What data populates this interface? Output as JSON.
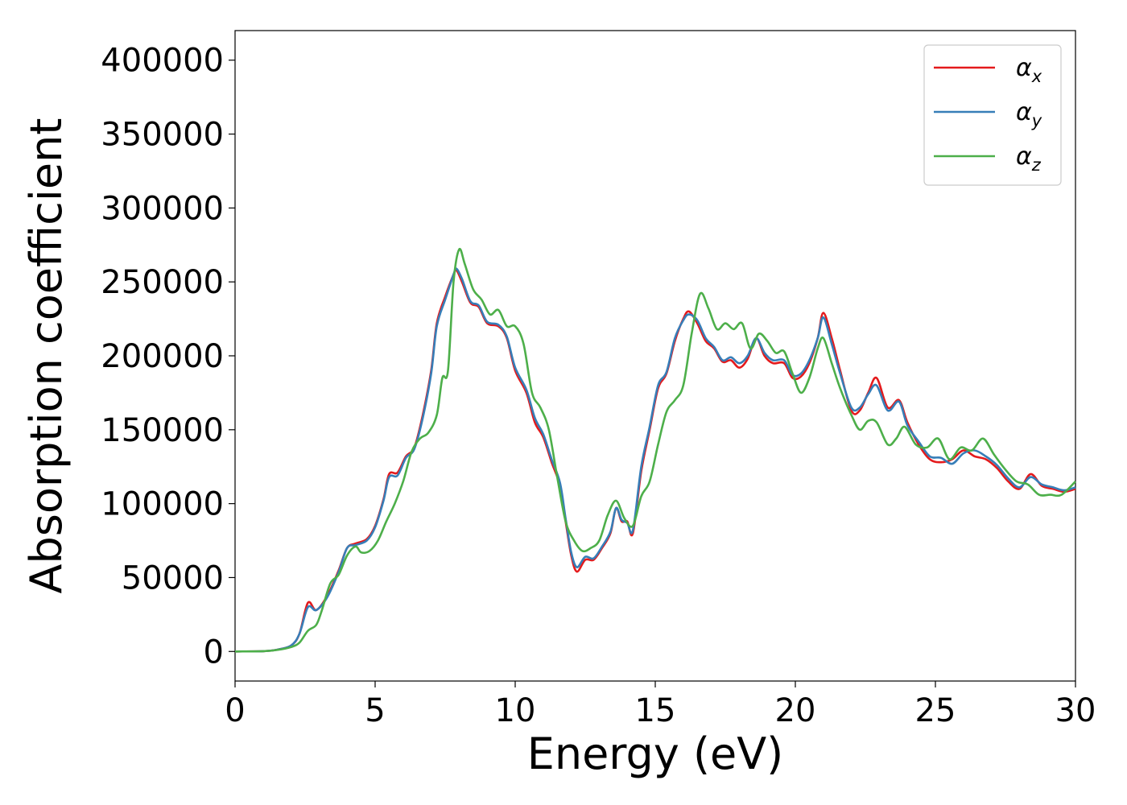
{
  "chart_data": {
    "type": "line",
    "xlabel": "Energy (eV)",
    "ylabel": "Absorption coefficient",
    "xlim": [
      0,
      30
    ],
    "ylim": [
      -20000,
      420000
    ],
    "xticks": [
      0,
      5,
      10,
      15,
      20,
      25,
      30
    ],
    "yticks": [
      0,
      50000,
      100000,
      150000,
      200000,
      250000,
      300000,
      350000,
      400000
    ],
    "grid": false,
    "legend_position": "top-right",
    "series": [
      {
        "name": "αx",
        "symbol": "α",
        "subscript": "x",
        "color": "#e41a1c",
        "points": [
          [
            0,
            0
          ],
          [
            1,
            200
          ],
          [
            1.5,
            1200
          ],
          [
            2,
            4000
          ],
          [
            2.3,
            12000
          ],
          [
            2.6,
            33000
          ],
          [
            2.9,
            28000
          ],
          [
            3.3,
            38000
          ],
          [
            3.7,
            55000
          ],
          [
            4,
            70000
          ],
          [
            4.3,
            73000
          ],
          [
            4.7,
            76000
          ],
          [
            5,
            85000
          ],
          [
            5.3,
            103000
          ],
          [
            5.5,
            120000
          ],
          [
            5.8,
            121000
          ],
          [
            6.1,
            132000
          ],
          [
            6.4,
            138000
          ],
          [
            6.7,
            160000
          ],
          [
            7,
            190000
          ],
          [
            7.2,
            222000
          ],
          [
            7.5,
            240000
          ],
          [
            7.8,
            255000
          ],
          [
            7.9,
            258000
          ],
          [
            8.1,
            250000
          ],
          [
            8.4,
            236000
          ],
          [
            8.7,
            233000
          ],
          [
            9,
            222000
          ],
          [
            9.4,
            220000
          ],
          [
            9.7,
            212000
          ],
          [
            10,
            190000
          ],
          [
            10.4,
            175000
          ],
          [
            10.7,
            155000
          ],
          [
            11,
            145000
          ],
          [
            11.3,
            128000
          ],
          [
            11.6,
            112000
          ],
          [
            11.8,
            88000
          ],
          [
            12,
            65000
          ],
          [
            12.2,
            54000
          ],
          [
            12.5,
            62000
          ],
          [
            12.8,
            62000
          ],
          [
            13.1,
            70000
          ],
          [
            13.4,
            80000
          ],
          [
            13.6,
            97000
          ],
          [
            13.8,
            88000
          ],
          [
            14,
            88000
          ],
          [
            14.2,
            80000
          ],
          [
            14.5,
            122000
          ],
          [
            14.8,
            150000
          ],
          [
            15.1,
            178000
          ],
          [
            15.4,
            188000
          ],
          [
            15.7,
            210000
          ],
          [
            16,
            225000
          ],
          [
            16.2,
            230000
          ],
          [
            16.5,
            222000
          ],
          [
            16.8,
            210000
          ],
          [
            17.1,
            205000
          ],
          [
            17.4,
            196000
          ],
          [
            17.7,
            197000
          ],
          [
            18,
            192000
          ],
          [
            18.3,
            198000
          ],
          [
            18.6,
            212000
          ],
          [
            18.9,
            200000
          ],
          [
            19.2,
            195000
          ],
          [
            19.6,
            195000
          ],
          [
            19.9,
            185000
          ],
          [
            20.2,
            186000
          ],
          [
            20.5,
            195000
          ],
          [
            20.8,
            212000
          ],
          [
            21,
            229000
          ],
          [
            21.3,
            212000
          ],
          [
            21.6,
            190000
          ],
          [
            22,
            163000
          ],
          [
            22.3,
            163000
          ],
          [
            22.6,
            175000
          ],
          [
            22.9,
            185000
          ],
          [
            23.3,
            165000
          ],
          [
            23.7,
            170000
          ],
          [
            24,
            155000
          ],
          [
            24.4,
            140000
          ],
          [
            24.8,
            130000
          ],
          [
            25.2,
            128000
          ],
          [
            25.6,
            130000
          ],
          [
            26,
            136000
          ],
          [
            26.4,
            132000
          ],
          [
            26.8,
            130000
          ],
          [
            27.2,
            124000
          ],
          [
            27.6,
            115000
          ],
          [
            28,
            110000
          ],
          [
            28.4,
            120000
          ],
          [
            28.8,
            112000
          ],
          [
            29.2,
            110000
          ],
          [
            29.6,
            108000
          ],
          [
            30,
            110000
          ]
        ]
      },
      {
        "name": "αy",
        "symbol": "α",
        "subscript": "y",
        "color": "#377eb8",
        "points": [
          [
            0,
            0
          ],
          [
            1,
            200
          ],
          [
            1.5,
            1200
          ],
          [
            2,
            4000
          ],
          [
            2.3,
            12000
          ],
          [
            2.6,
            30000
          ],
          [
            2.9,
            28000
          ],
          [
            3.3,
            37000
          ],
          [
            3.7,
            54000
          ],
          [
            4,
            70000
          ],
          [
            4.3,
            72000
          ],
          [
            4.7,
            75000
          ],
          [
            5,
            84000
          ],
          [
            5.3,
            102000
          ],
          [
            5.5,
            118000
          ],
          [
            5.8,
            119000
          ],
          [
            6.1,
            131000
          ],
          [
            6.4,
            137000
          ],
          [
            6.7,
            158000
          ],
          [
            7,
            188000
          ],
          [
            7.2,
            220000
          ],
          [
            7.5,
            238000
          ],
          [
            7.8,
            255000
          ],
          [
            7.9,
            259000
          ],
          [
            8.1,
            252000
          ],
          [
            8.4,
            237000
          ],
          [
            8.7,
            234000
          ],
          [
            9,
            223000
          ],
          [
            9.4,
            221000
          ],
          [
            9.7,
            213000
          ],
          [
            10,
            192000
          ],
          [
            10.4,
            177000
          ],
          [
            10.7,
            158000
          ],
          [
            11,
            147000
          ],
          [
            11.3,
            130000
          ],
          [
            11.6,
            114000
          ],
          [
            11.8,
            90000
          ],
          [
            12,
            67000
          ],
          [
            12.2,
            57000
          ],
          [
            12.5,
            64000
          ],
          [
            12.8,
            63000
          ],
          [
            13.1,
            71000
          ],
          [
            13.4,
            81000
          ],
          [
            13.6,
            97000
          ],
          [
            13.8,
            89000
          ],
          [
            14,
            87000
          ],
          [
            14.2,
            82000
          ],
          [
            14.5,
            125000
          ],
          [
            14.8,
            152000
          ],
          [
            15.1,
            180000
          ],
          [
            15.4,
            189000
          ],
          [
            15.7,
            212000
          ],
          [
            16,
            224000
          ],
          [
            16.2,
            228000
          ],
          [
            16.5,
            224000
          ],
          [
            16.8,
            212000
          ],
          [
            17.1,
            206000
          ],
          [
            17.4,
            197000
          ],
          [
            17.7,
            199000
          ],
          [
            18,
            195000
          ],
          [
            18.3,
            200000
          ],
          [
            18.6,
            212000
          ],
          [
            18.9,
            202000
          ],
          [
            19.2,
            197000
          ],
          [
            19.6,
            197000
          ],
          [
            19.9,
            187000
          ],
          [
            20.2,
            188000
          ],
          [
            20.5,
            197000
          ],
          [
            20.8,
            212000
          ],
          [
            21,
            226000
          ],
          [
            21.3,
            208000
          ],
          [
            21.6,
            188000
          ],
          [
            22,
            165000
          ],
          [
            22.3,
            165000
          ],
          [
            22.6,
            174000
          ],
          [
            22.9,
            180000
          ],
          [
            23.3,
            163000
          ],
          [
            23.7,
            169000
          ],
          [
            24,
            153000
          ],
          [
            24.4,
            142000
          ],
          [
            24.8,
            132000
          ],
          [
            25.2,
            131000
          ],
          [
            25.6,
            127000
          ],
          [
            26,
            134000
          ],
          [
            26.4,
            136000
          ],
          [
            26.8,
            132000
          ],
          [
            27.2,
            126000
          ],
          [
            27.6,
            117000
          ],
          [
            28,
            111000
          ],
          [
            28.4,
            118000
          ],
          [
            28.8,
            113000
          ],
          [
            29.2,
            111000
          ],
          [
            29.6,
            109000
          ],
          [
            30,
            111000
          ]
        ]
      },
      {
        "name": "αz",
        "symbol": "α",
        "subscript": "z",
        "color": "#4daf4a",
        "points": [
          [
            0,
            0
          ],
          [
            1,
            200
          ],
          [
            1.5,
            1000
          ],
          [
            2,
            3000
          ],
          [
            2.3,
            6000
          ],
          [
            2.6,
            14000
          ],
          [
            2.9,
            18000
          ],
          [
            3.1,
            28000
          ],
          [
            3.4,
            46000
          ],
          [
            3.7,
            52000
          ],
          [
            4,
            65000
          ],
          [
            4.3,
            71000
          ],
          [
            4.5,
            67000
          ],
          [
            4.8,
            68000
          ],
          [
            5.1,
            75000
          ],
          [
            5.4,
            88000
          ],
          [
            5.7,
            100000
          ],
          [
            6,
            115000
          ],
          [
            6.3,
            135000
          ],
          [
            6.6,
            144000
          ],
          [
            6.9,
            148000
          ],
          [
            7.2,
            160000
          ],
          [
            7.4,
            185000
          ],
          [
            7.6,
            190000
          ],
          [
            7.8,
            250000
          ],
          [
            8,
            272000
          ],
          [
            8.2,
            262000
          ],
          [
            8.5,
            245000
          ],
          [
            8.8,
            238000
          ],
          [
            9.1,
            228000
          ],
          [
            9.4,
            231000
          ],
          [
            9.7,
            220000
          ],
          [
            10,
            220000
          ],
          [
            10.3,
            208000
          ],
          [
            10.6,
            175000
          ],
          [
            10.9,
            165000
          ],
          [
            11.2,
            150000
          ],
          [
            11.5,
            118000
          ],
          [
            11.8,
            88000
          ],
          [
            12.1,
            75000
          ],
          [
            12.4,
            68000
          ],
          [
            12.7,
            70000
          ],
          [
            13,
            75000
          ],
          [
            13.3,
            92000
          ],
          [
            13.6,
            102000
          ],
          [
            13.9,
            90000
          ],
          [
            14.2,
            85000
          ],
          [
            14.5,
            105000
          ],
          [
            14.8,
            115000
          ],
          [
            15.1,
            140000
          ],
          [
            15.4,
            162000
          ],
          [
            15.7,
            170000
          ],
          [
            16,
            180000
          ],
          [
            16.3,
            215000
          ],
          [
            16.6,
            242000
          ],
          [
            16.9,
            232000
          ],
          [
            17.2,
            218000
          ],
          [
            17.5,
            222000
          ],
          [
            17.8,
            218000
          ],
          [
            18.1,
            222000
          ],
          [
            18.4,
            205000
          ],
          [
            18.7,
            215000
          ],
          [
            19,
            210000
          ],
          [
            19.3,
            202000
          ],
          [
            19.6,
            203000
          ],
          [
            19.9,
            188000
          ],
          [
            20.2,
            175000
          ],
          [
            20.5,
            185000
          ],
          [
            20.8,
            205000
          ],
          [
            21,
            212000
          ],
          [
            21.3,
            195000
          ],
          [
            21.6,
            178000
          ],
          [
            22,
            160000
          ],
          [
            22.3,
            150000
          ],
          [
            22.6,
            156000
          ],
          [
            22.9,
            155000
          ],
          [
            23.3,
            140000
          ],
          [
            23.6,
            144000
          ],
          [
            23.9,
            152000
          ],
          [
            24.3,
            140000
          ],
          [
            24.7,
            138000
          ],
          [
            25.1,
            144000
          ],
          [
            25.5,
            130000
          ],
          [
            25.9,
            138000
          ],
          [
            26.3,
            136000
          ],
          [
            26.7,
            144000
          ],
          [
            27.1,
            133000
          ],
          [
            27.5,
            123000
          ],
          [
            27.9,
            115000
          ],
          [
            28.3,
            113000
          ],
          [
            28.7,
            106000
          ],
          [
            29.1,
            106000
          ],
          [
            29.5,
            106000
          ],
          [
            30,
            115000
          ]
        ]
      }
    ]
  }
}
